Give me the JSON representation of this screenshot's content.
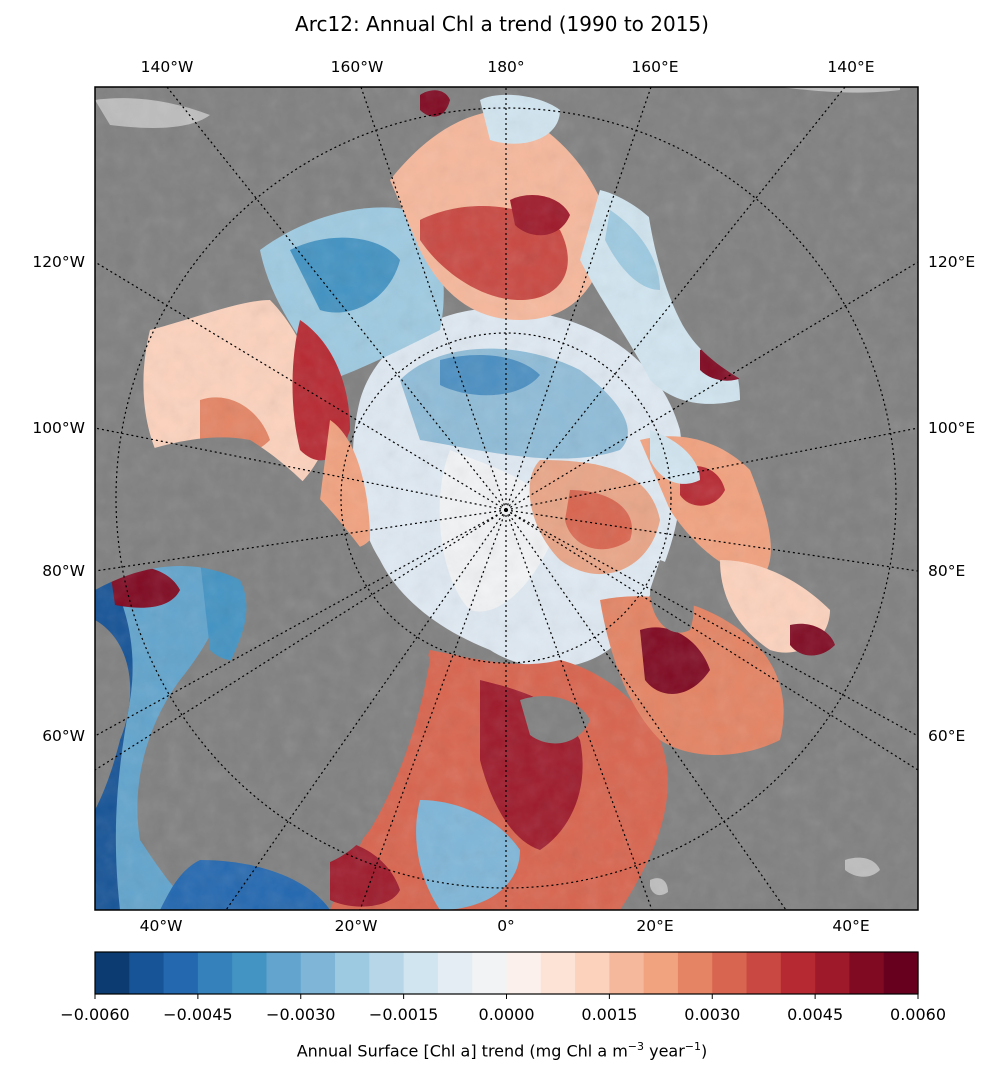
{
  "title": "Arc12: Annual Chl a trend (1990 to 2015)",
  "map": {
    "projection": "north-polar-stereographic",
    "land_color": "#808080",
    "outer_land_color": "#bdbdbd",
    "top_labels": [
      "140°W",
      "160°W",
      "180°",
      "160°E",
      "140°E"
    ],
    "bottom_labels": [
      "40°W",
      "20°W",
      "0°",
      "20°E",
      "40°E"
    ],
    "left_labels": [
      "120°W",
      "100°W",
      "80°W",
      "60°W"
    ],
    "right_labels": [
      "120°E",
      "100°E",
      "80°E",
      "60°E"
    ]
  },
  "colorbar": {
    "colormap": "RdBu_r",
    "vmin": -0.006,
    "vmax": 0.006,
    "colors": [
      "#0b3b70",
      "#175497",
      "#2468b0",
      "#3581bb",
      "#4393c3",
      "#62a4cd",
      "#7fb6d8",
      "#9ecae1",
      "#b7d7e8",
      "#d1e5f0",
      "#e3edf3",
      "#f1f3f5",
      "#fbf0eb",
      "#fde3d6",
      "#fcd2bd",
      "#f6b89c",
      "#f1a27f",
      "#e48464",
      "#d8654f",
      "#c94842",
      "#b72932",
      "#9e1a2b",
      "#800a22",
      "#67001f"
    ],
    "tick_labels": [
      "−0.0060",
      "−0.0045",
      "−0.0030",
      "−0.0015",
      "0.0000",
      "0.0015",
      "0.0030",
      "0.0045",
      "0.0060"
    ],
    "label_main": "Annual Surface [Chl a] trend (mg Chl a m",
    "label_exp1": "−3",
    "label_mid": " year",
    "label_exp2": "−1",
    "label_end": ")"
  }
}
